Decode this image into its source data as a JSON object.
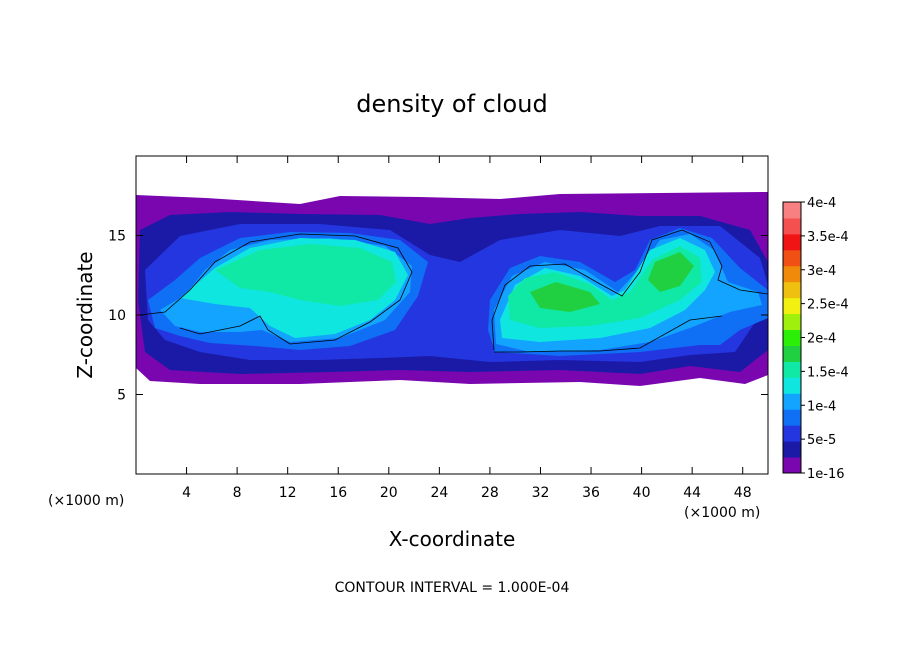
{
  "chart_data": {
    "type": "heatmap",
    "title": "density of cloud",
    "xlabel": "X-coordinate",
    "ylabel": "Z-coordinate",
    "x_unit": "(×1000 m)",
    "y_unit": "(×1000 m)",
    "xlim": [
      0,
      50
    ],
    "ylim": [
      0,
      20
    ],
    "x_ticks": [
      4,
      8,
      12,
      16,
      20,
      24,
      28,
      32,
      36,
      40,
      44,
      48
    ],
    "y_ticks": [
      5,
      10,
      15
    ],
    "footer": "CONTOUR INTERVAL = 1.000E-04",
    "colorbar": {
      "labels": [
        "1e-16",
        "5e-5",
        "1e-4",
        "1.5e-4",
        "2e-4",
        "2.5e-4",
        "3e-4",
        "3.5e-4",
        "4e-4"
      ],
      "level_colors": [
        "#7a06b0",
        "#1a1aa6",
        "#2436e0",
        "#0f6ff5",
        "#12a4ff",
        "#10e6e0",
        "#10e8a6",
        "#20d040",
        "#2cef08",
        "#9ff00c",
        "#f2f010",
        "#f0c010",
        "#f08a0a",
        "#f05014",
        "#f01414",
        "#f55050",
        "#f88080"
      ]
    },
    "regions": [
      {
        "name": "low density cloud layer",
        "x_range": [
          0,
          50
        ],
        "z_range": [
          5.6,
          17.6
        ],
        "level": "1e-16"
      },
      {
        "name": "left cloud core",
        "x_range": [
          0,
          21.5
        ],
        "z_range": [
          7.8,
          15.2
        ],
        "level": "1.5e-4"
      },
      {
        "name": "right cloud core",
        "x_range": [
          28.4,
          50
        ],
        "z_range": [
          7.7,
          15.1
        ],
        "level": "1.5e-4"
      }
    ]
  }
}
